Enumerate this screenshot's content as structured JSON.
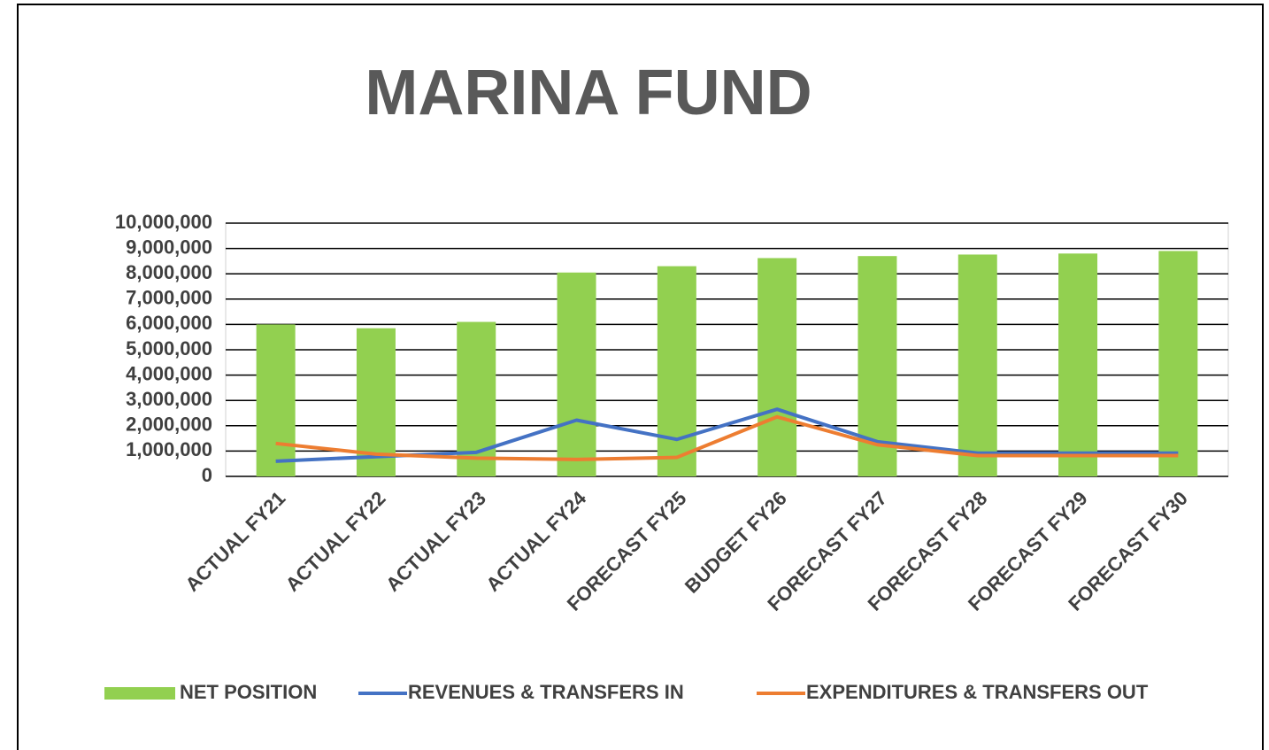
{
  "chart_data": {
    "type": "bar",
    "title": "MARINA FUND",
    "categories": [
      "ACTUAL FY21",
      "ACTUAL FY22",
      "ACTUAL FY23",
      "ACTUAL FY24",
      "FORECAST FY25",
      "BUDGET FY26",
      "FORECAST FY27",
      "FORECAST FY28",
      "FORECAST FY29",
      "FORECAST FY30"
    ],
    "series": [
      {
        "name": "NET POSITION",
        "type": "bar",
        "color": "#92d050",
        "values": [
          6000000,
          5850000,
          6100000,
          8050000,
          8300000,
          8620000,
          8700000,
          8760000,
          8800000,
          8900000
        ]
      },
      {
        "name": "REVENUES & TRANSFERS IN",
        "type": "line",
        "color": "#4472c4",
        "values": [
          600000,
          780000,
          950000,
          2220000,
          1460000,
          2650000,
          1370000,
          920000,
          920000,
          920000
        ]
      },
      {
        "name": "EXPENDITURES & TRANSFERS OUT",
        "type": "line",
        "color": "#ed7d31",
        "values": [
          1300000,
          880000,
          720000,
          670000,
          750000,
          2350000,
          1250000,
          820000,
          820000,
          820000
        ]
      }
    ],
    "ylim": [
      0,
      10000000
    ],
    "yticks": [
      0,
      {
        "value": 1000000,
        "label": "1,000,000"
      },
      {
        "value": 2000000,
        "label": "2,000,000"
      },
      {
        "value": 3000000,
        "label": "3,000,000"
      },
      {
        "value": 4000000,
        "label": "4,000,000"
      },
      {
        "value": 5000000,
        "label": "5,000,000"
      },
      {
        "value": 6000000,
        "label": "6,000,000"
      },
      {
        "value": 7000000,
        "label": "7,000,000"
      },
      {
        "value": 8000000,
        "label": "8,000,000"
      },
      {
        "value": 9000000,
        "label": "9,000,000"
      },
      {
        "value": 10000000,
        "label": "10,000,000"
      }
    ],
    "grid": true,
    "legend": "bottom"
  }
}
